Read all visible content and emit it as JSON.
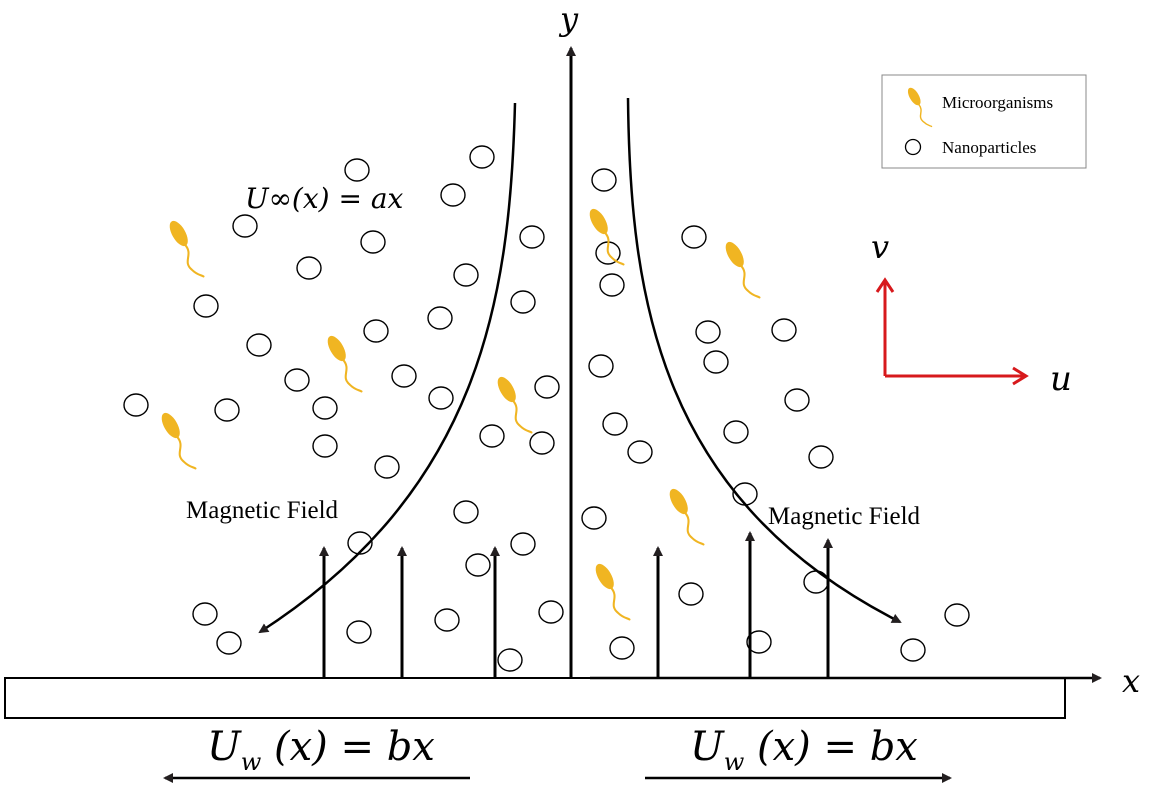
{
  "figure": {
    "axis_labels": {
      "y": "y",
      "x": "x"
    },
    "free_stream_label": "U∞(x) = ax",
    "wall_velocity_left": {
      "main": "U",
      "sub": "w",
      "rest": " (x) = bx"
    },
    "wall_velocity_right": {
      "main": "U",
      "sub": "w",
      "rest": " (x) = bx"
    },
    "magnetic_field_left": "Magnetic Field",
    "magnetic_field_right": "Magnetic Field",
    "velocity_components": {
      "v": "v",
      "u": "u"
    },
    "legend": {
      "microorganisms": "Microorganisms",
      "nanoparticles": "Nanoparticles"
    }
  },
  "colors": {
    "microorganism": "#F0B522",
    "velocity_arrows": "#D7191C",
    "ink": "#000000",
    "arrow_fill": "#231F20"
  },
  "icons": [
    "microorganism-icon",
    "nanoparticle-icon"
  ]
}
